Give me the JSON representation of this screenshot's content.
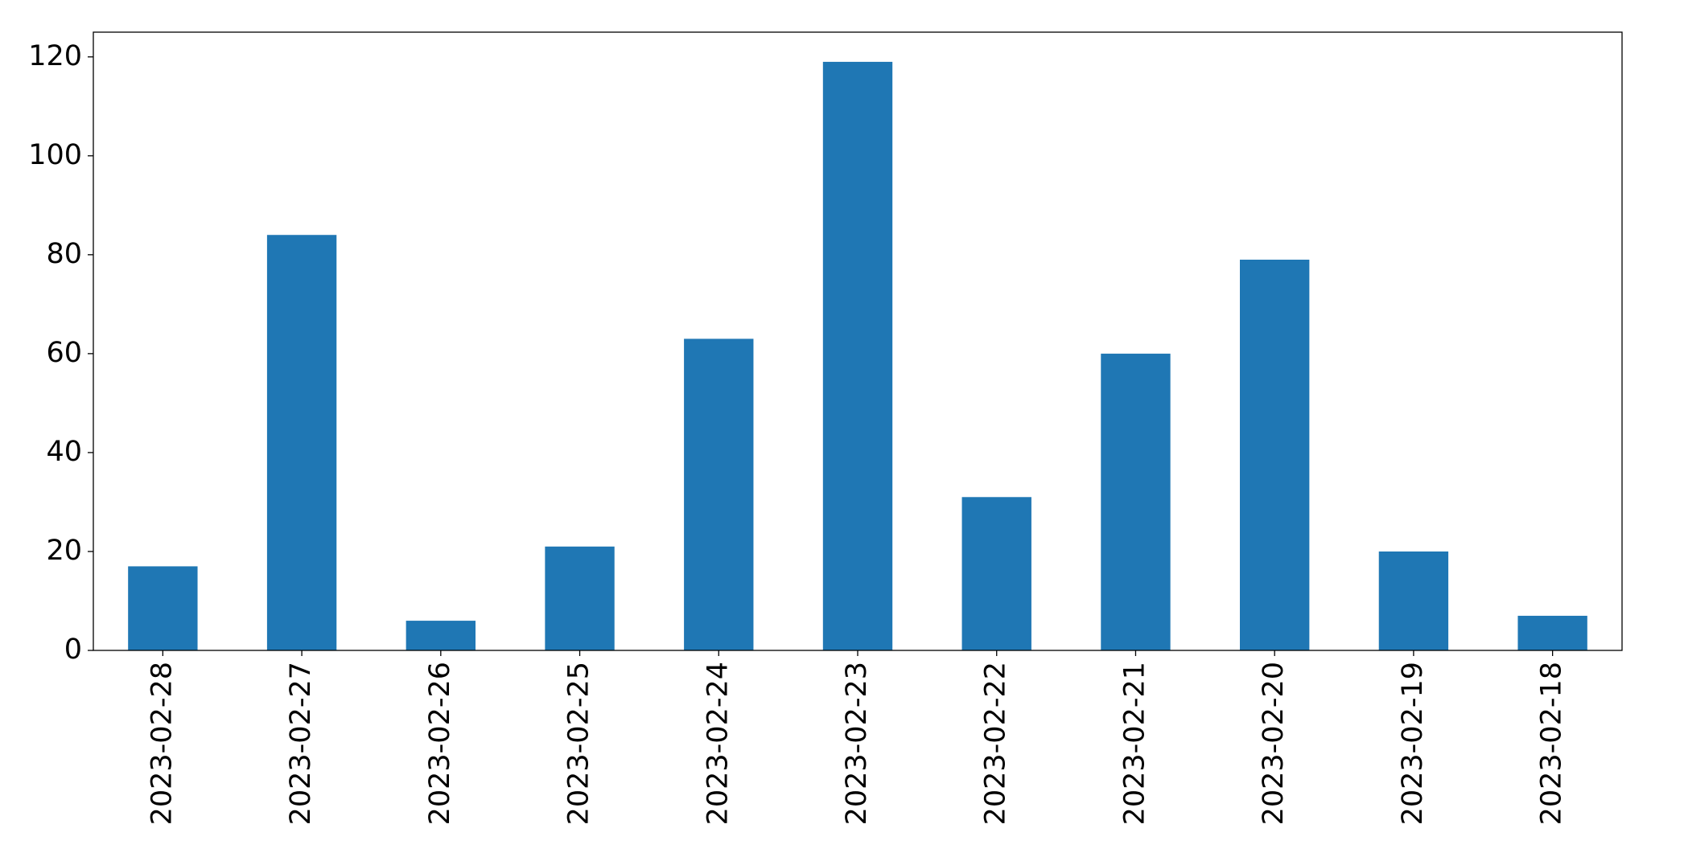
{
  "chart_data": {
    "type": "bar",
    "categories": [
      "2023-02-28",
      "2023-02-27",
      "2023-02-26",
      "2023-02-25",
      "2023-02-24",
      "2023-02-23",
      "2023-02-22",
      "2023-02-21",
      "2023-02-20",
      "2023-02-19",
      "2023-02-18"
    ],
    "values": [
      17,
      84,
      6,
      21,
      63,
      119,
      31,
      60,
      79,
      20,
      7
    ],
    "color": "#1f77b4",
    "ylim": [
      0,
      125
    ],
    "yticks": [
      0,
      20,
      40,
      60,
      80,
      100,
      120
    ],
    "grid": false
  }
}
